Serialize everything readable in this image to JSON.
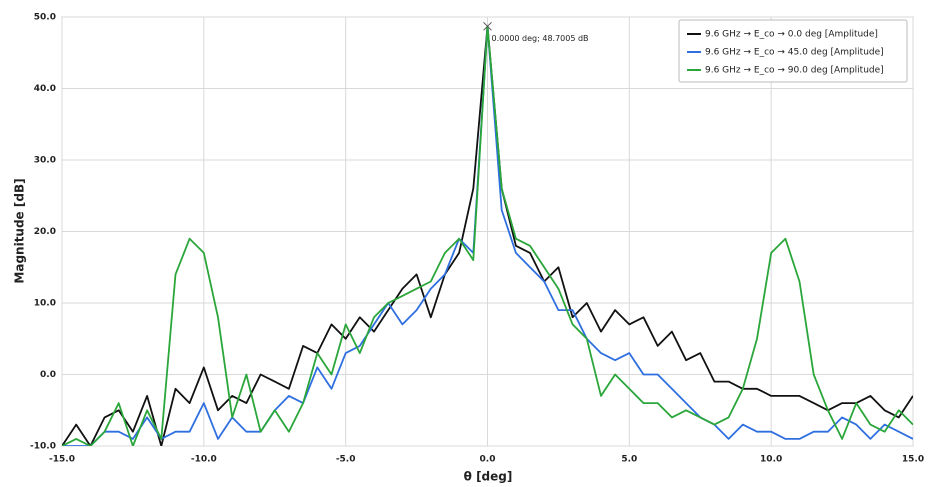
{
  "chart_data": {
    "type": "line",
    "x_label": "θ [deg]",
    "y_label": "Magnitude [dB]",
    "x": [
      -15,
      -14.5,
      -14,
      -13.5,
      -13,
      -12.5,
      -12,
      -11.5,
      -11,
      -10.5,
      -10,
      -9.5,
      -9,
      -8.5,
      -8,
      -7.5,
      -7,
      -6.5,
      -6,
      -5.5,
      -5,
      -4.5,
      -4,
      -3.5,
      -3,
      -2.5,
      -2,
      -1.5,
      -1,
      -0.5,
      0,
      0.5,
      1,
      1.5,
      2,
      2.5,
      3,
      3.5,
      4,
      4.5,
      5,
      5.5,
      6,
      6.5,
      7,
      7.5,
      8,
      8.5,
      9,
      9.5,
      10,
      10.5,
      11,
      11.5,
      12,
      12.5,
      13,
      13.5,
      14,
      14.5,
      15
    ],
    "series": [
      {
        "name": "9.6 GHz → E_co → 0.0 deg [Amplitude]",
        "color": "#111111",
        "values": [
          -10,
          -7,
          -10,
          -6,
          -5,
          -8,
          -3,
          -10,
          -2,
          -4,
          1,
          -5,
          -3,
          -4,
          0,
          -1,
          -2,
          4,
          3,
          7,
          5,
          8,
          6,
          9,
          12,
          14,
          8,
          14,
          17,
          26,
          48.7,
          26,
          18,
          17,
          13,
          15,
          8,
          10,
          6,
          9,
          7,
          8,
          4,
          6,
          2,
          3,
          -1,
          -1,
          -2,
          -2,
          -3,
          -3,
          -3,
          -4,
          -5,
          -4,
          -4,
          -3,
          -5,
          -6,
          -3
        ]
      },
      {
        "name": "9.6 GHz → E_co → 45.0 deg [Amplitude]",
        "color": "#2f6fe0",
        "values": [
          -10,
          -10,
          -10,
          -8,
          -8,
          -9,
          -6,
          -9,
          -8,
          -8,
          -4,
          -9,
          -6,
          -8,
          -8,
          -5,
          -3,
          -4,
          1,
          -2,
          3,
          4,
          7,
          10,
          7,
          9,
          12,
          14,
          19,
          17,
          48.7,
          23,
          17,
          15,
          13,
          9,
          9,
          5,
          3,
          2,
          3,
          0,
          0,
          -2,
          -4,
          -6,
          -7,
          -9,
          -7,
          -8,
          -8,
          -9,
          -9,
          -8,
          -8,
          -6,
          -7,
          -9,
          -7,
          -8,
          -9
        ]
      },
      {
        "name": "9.6 GHz → E_co → 90.0 deg [Amplitude]",
        "color": "#2aa63a",
        "values": [
          -10,
          -9,
          -10,
          -8,
          -4,
          -10,
          -5,
          -9,
          14,
          19,
          17,
          8,
          -6,
          0,
          -8,
          -5,
          -8,
          -4,
          3,
          0,
          7,
          3,
          8,
          10,
          11,
          12,
          13,
          17,
          19,
          16,
          48.7,
          26,
          19,
          18,
          15,
          12,
          7,
          5,
          -3,
          0,
          -2,
          -4,
          -4,
          -6,
          -5,
          -6,
          -7,
          -6,
          -2,
          5,
          17,
          19,
          13,
          0,
          -5,
          -9,
          -4,
          -7,
          -8,
          -5,
          -7
        ]
      }
    ],
    "xlim": [
      -15,
      15
    ],
    "xticks": [
      {
        "value": -15,
        "label": "-15.0"
      },
      {
        "value": -10,
        "label": "-10.0"
      },
      {
        "value": -5,
        "label": "-5.0"
      },
      {
        "value": 0,
        "label": "0.0"
      },
      {
        "value": 5,
        "label": "5.0"
      },
      {
        "value": 10,
        "label": "10.0"
      },
      {
        "value": 15,
        "label": "15.0"
      }
    ],
    "ylim": [
      -10,
      50
    ],
    "yticks": [
      {
        "value": -10,
        "label": "-10.0"
      },
      {
        "value": 0,
        "label": "0.0"
      },
      {
        "value": 10,
        "label": "10.0"
      },
      {
        "value": 20,
        "label": "20.0"
      },
      {
        "value": 30,
        "label": "30.0"
      },
      {
        "value": 40,
        "label": "40.0"
      },
      {
        "value": 50,
        "label": "50.0"
      }
    ],
    "grid": true,
    "legend": "top-right",
    "annotation": {
      "text": "0.0000 deg; 48.7005 dB",
      "x": 0,
      "y": 48.7005
    }
  }
}
